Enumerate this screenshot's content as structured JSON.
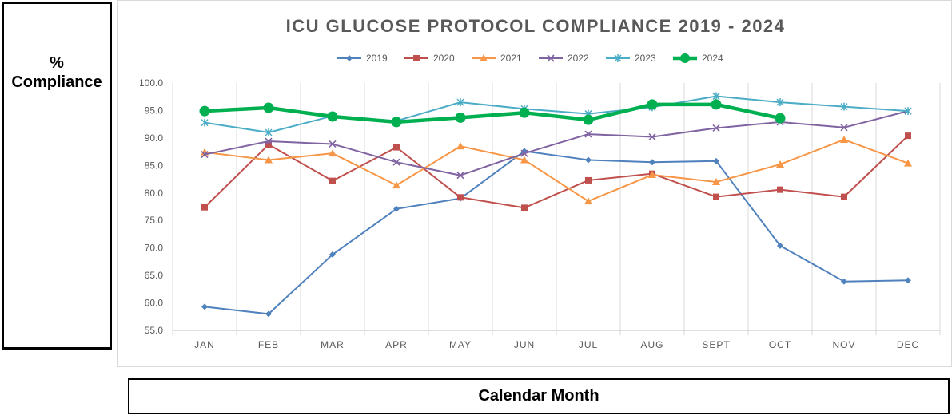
{
  "y_axis_box": {
    "label": "% Compliance"
  },
  "x_axis_box": {
    "label": "Calendar Month"
  },
  "chart_data": {
    "type": "line",
    "title": "ICU GLUCOSE PROTOCOL COMPLIANCE 2019 - 2024",
    "ylim": [
      55,
      100
    ],
    "y_ticks": [
      "100.0",
      "95.0",
      "90.0",
      "85.0",
      "80.0",
      "75.0",
      "70.0",
      "65.0",
      "60.0",
      "55.0"
    ],
    "grid": "vertical",
    "legend_position": "top",
    "categories": [
      "JAN",
      "FEB",
      "MAR",
      "APR",
      "MAY",
      "JUN",
      "JUL",
      "AUG",
      "SEPT",
      "OCT",
      "NOV",
      "DEC"
    ],
    "series": [
      {
        "name": "2019",
        "color": "#4F81BD",
        "marker": "diamond",
        "values": [
          59.3,
          58.0,
          68.8,
          77.1,
          79.0,
          87.6,
          86.0,
          85.6,
          85.8,
          70.4,
          63.9,
          64.1
        ]
      },
      {
        "name": "2020",
        "color": "#C0504D",
        "marker": "square",
        "values": [
          77.4,
          88.8,
          82.2,
          88.3,
          79.2,
          77.3,
          82.3,
          83.5,
          79.3,
          80.6,
          79.3,
          90.4
        ]
      },
      {
        "name": "2021",
        "color": "#F79646",
        "marker": "triangle",
        "values": [
          87.4,
          86.0,
          87.2,
          81.4,
          88.5,
          86.0,
          78.5,
          83.3,
          82.0,
          85.2,
          89.7,
          85.4
        ]
      },
      {
        "name": "2022",
        "color": "#8064A2",
        "marker": "x",
        "values": [
          87.0,
          89.4,
          88.9,
          85.6,
          83.2,
          87.2,
          90.7,
          90.2,
          91.8,
          92.9,
          91.9,
          94.9
        ]
      },
      {
        "name": "2023",
        "color": "#4BACC6",
        "marker": "star",
        "values": [
          92.8,
          91.0,
          94.0,
          93.1,
          96.5,
          95.3,
          94.4,
          95.6,
          97.6,
          96.5,
          95.7,
          94.9
        ]
      },
      {
        "name": "2024",
        "color": "#00B050",
        "marker": "circle",
        "bold": true,
        "values": [
          94.9,
          95.5,
          93.9,
          92.9,
          93.7,
          94.6,
          93.3,
          96.1,
          96.1,
          93.6,
          null,
          null
        ]
      }
    ]
  }
}
